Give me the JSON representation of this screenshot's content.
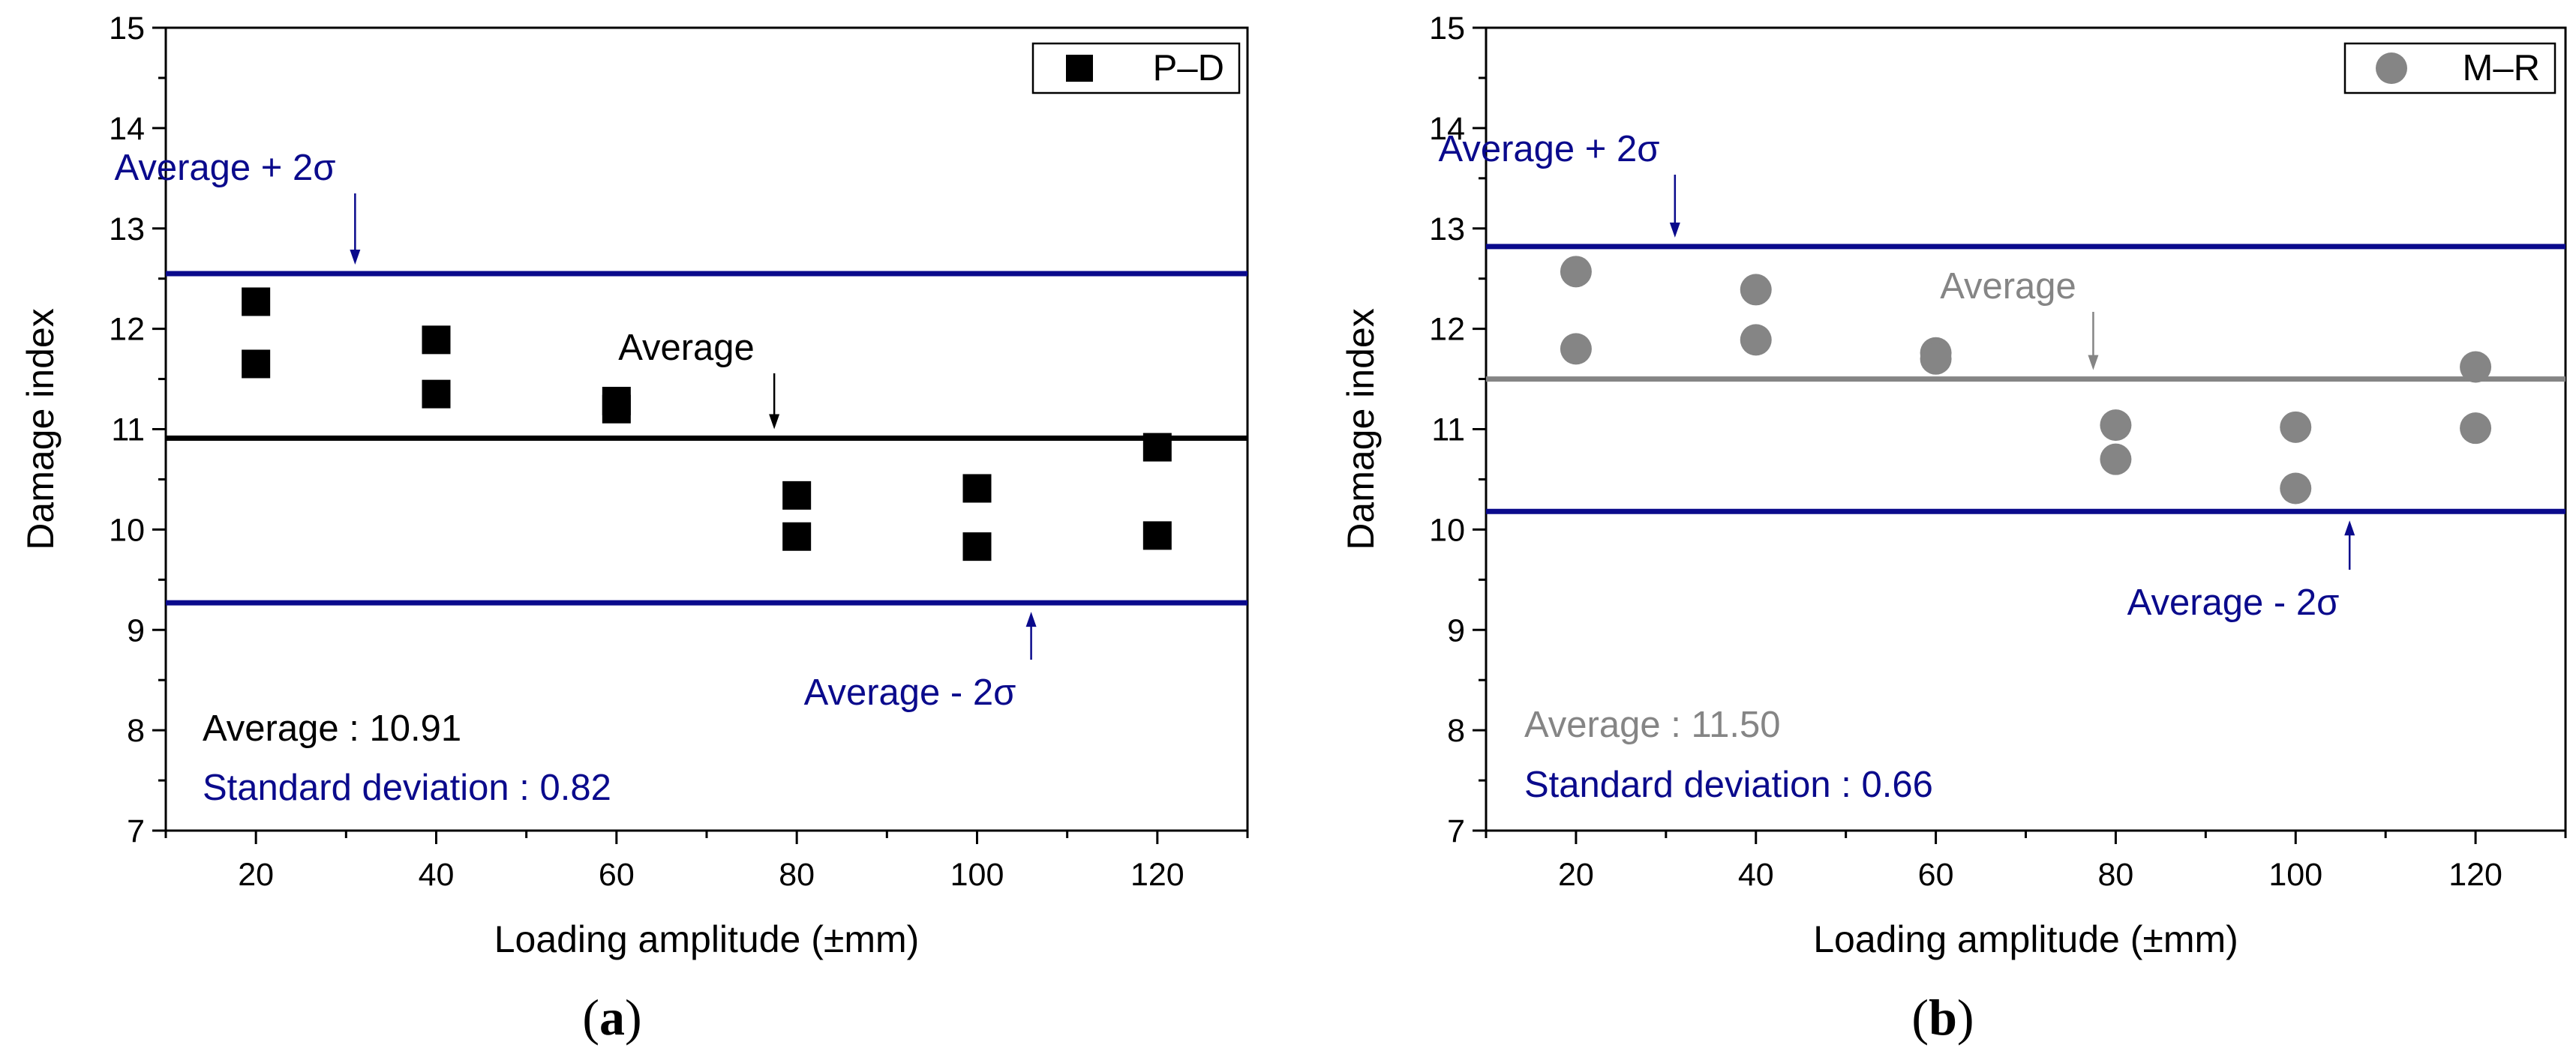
{
  "colors": {
    "axis": "#000000",
    "navy": "#0a0a8c",
    "black": "#000000",
    "gray": "#858585"
  },
  "chart_data": [
    {
      "type": "scatter",
      "panel_label": "(a)",
      "xlabel": "Loading amplitude (±mm)",
      "ylabel": "Damage index",
      "xlim": [
        10,
        130
      ],
      "ylim": [
        7,
        15
      ],
      "xticks": [
        20,
        40,
        60,
        80,
        100,
        120
      ],
      "yticks": [
        7,
        8,
        9,
        10,
        11,
        12,
        13,
        14,
        15
      ],
      "legend": {
        "label": "P–D",
        "marker": "square",
        "placement": "top-right"
      },
      "series": [
        {
          "name": "P–D",
          "marker": "square",
          "color": "#000000",
          "points": [
            [
              20,
              12.27
            ],
            [
              20,
              11.65
            ],
            [
              40,
              11.89
            ],
            [
              40,
              11.35
            ],
            [
              60,
              11.28
            ],
            [
              60,
              11.2
            ],
            [
              80,
              10.34
            ],
            [
              80,
              9.93
            ],
            [
              100,
              10.41
            ],
            [
              100,
              9.83
            ],
            [
              120,
              10.82
            ],
            [
              120,
              9.94
            ]
          ]
        }
      ],
      "reference_lines": [
        {
          "name": "average-plus-2sigma",
          "y": 12.55,
          "color": "#0a0a8c"
        },
        {
          "name": "average",
          "y": 10.91,
          "color": "#000000"
        },
        {
          "name": "average-minus-2sigma",
          "y": 9.27,
          "color": "#0a0a8c"
        }
      ],
      "annotations": {
        "upper": {
          "text": "Average + 2σ",
          "arrow_x": 31
        },
        "middle": {
          "text": "Average",
          "arrow_x": 77.5
        },
        "lower": {
          "text": "Average - 2σ",
          "arrow_x": 106
        },
        "average_stat": "Average : 10.91",
        "std_stat": "Standard deviation : 0.82"
      }
    },
    {
      "type": "scatter",
      "panel_label": "(b)",
      "xlabel": "Loading amplitude (±mm)",
      "ylabel": "Damage index",
      "xlim": [
        10,
        130
      ],
      "ylim": [
        7,
        15
      ],
      "xticks": [
        20,
        40,
        60,
        80,
        100,
        120
      ],
      "yticks": [
        7,
        8,
        9,
        10,
        11,
        12,
        13,
        14,
        15
      ],
      "legend": {
        "label": "M–R",
        "marker": "circle",
        "placement": "top-right"
      },
      "series": [
        {
          "name": "M–R",
          "marker": "circle",
          "color": "#858585",
          "points": [
            [
              20,
              12.57
            ],
            [
              20,
              11.8
            ],
            [
              40,
              12.39
            ],
            [
              40,
              11.89
            ],
            [
              60,
              11.76
            ],
            [
              60,
              11.7
            ],
            [
              80,
              11.04
            ],
            [
              80,
              10.7
            ],
            [
              100,
              11.02
            ],
            [
              100,
              10.41
            ],
            [
              120,
              11.62
            ],
            [
              120,
              11.01
            ]
          ]
        }
      ],
      "reference_lines": [
        {
          "name": "average-plus-2sigma",
          "y": 12.82,
          "color": "#0a0a8c"
        },
        {
          "name": "average",
          "y": 11.5,
          "color": "#858585"
        },
        {
          "name": "average-minus-2sigma",
          "y": 10.18,
          "color": "#0a0a8c"
        }
      ],
      "annotations": {
        "upper": {
          "text": "Average + 2σ",
          "arrow_x": 31
        },
        "middle": {
          "text": "Average",
          "arrow_x": 77.5
        },
        "lower": {
          "text": "Average - 2σ",
          "arrow_x": 106
        },
        "average_stat": "Average : 11.50",
        "std_stat": "Standard deviation : 0.66"
      }
    }
  ]
}
